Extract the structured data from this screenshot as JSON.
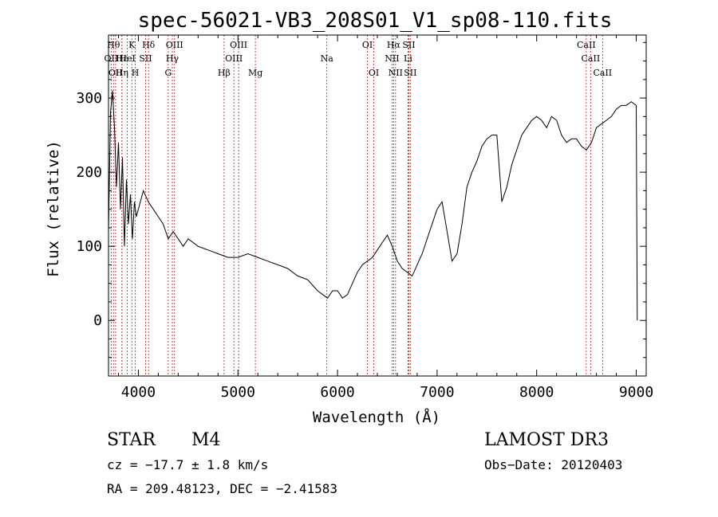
{
  "chart_data": {
    "type": "line",
    "title": "spec-56021-VB3_208S01_V1_sp08-110.fits",
    "xlabel": "Wavelength (Å)",
    "ylabel": "Flux (relative)",
    "xlim": [
      3700,
      9100
    ],
    "ylim": [
      -75,
      385
    ],
    "xticks": [
      4000,
      5000,
      6000,
      7000,
      8000,
      9000
    ],
    "yticks": [
      0,
      100,
      200,
      300
    ],
    "grid": false,
    "series": [
      {
        "name": "flux",
        "x": [
          3700,
          3720,
          3740,
          3760,
          3780,
          3800,
          3820,
          3840,
          3860,
          3880,
          3900,
          3920,
          3940,
          3960,
          3980,
          4000,
          4050,
          4100,
          4150,
          4200,
          4250,
          4300,
          4350,
          4400,
          4450,
          4500,
          4600,
          4700,
          4800,
          4900,
          5000,
          5100,
          5200,
          5300,
          5400,
          5500,
          5600,
          5700,
          5800,
          5850,
          5900,
          5950,
          6000,
          6050,
          6100,
          6150,
          6200,
          6250,
          6300,
          6350,
          6400,
          6450,
          6500,
          6550,
          6600,
          6650,
          6700,
          6750,
          6800,
          6850,
          6900,
          6950,
          7000,
          7050,
          7100,
          7150,
          7200,
          7250,
          7300,
          7350,
          7400,
          7450,
          7500,
          7550,
          7600,
          7650,
          7700,
          7750,
          7800,
          7850,
          7900,
          7950,
          8000,
          8050,
          8100,
          8150,
          8200,
          8250,
          8300,
          8350,
          8400,
          8450,
          8500,
          8550,
          8600,
          8650,
          8700,
          8750,
          8800,
          8850,
          8900,
          8950,
          9000,
          9010
        ],
        "y": [
          120,
          280,
          310,
          260,
          180,
          240,
          150,
          220,
          100,
          190,
          130,
          170,
          110,
          160,
          140,
          150,
          175,
          160,
          150,
          140,
          130,
          110,
          120,
          110,
          100,
          110,
          100,
          95,
          90,
          85,
          85,
          90,
          85,
          80,
          75,
          70,
          60,
          55,
          40,
          35,
          30,
          40,
          40,
          30,
          35,
          50,
          65,
          75,
          80,
          85,
          95,
          105,
          115,
          100,
          80,
          70,
          65,
          60,
          75,
          90,
          110,
          130,
          150,
          160,
          120,
          80,
          90,
          130,
          180,
          200,
          215,
          235,
          245,
          250,
          250,
          160,
          180,
          210,
          230,
          250,
          260,
          270,
          275,
          270,
          260,
          275,
          270,
          250,
          240,
          245,
          245,
          235,
          230,
          240,
          260,
          265,
          270,
          275,
          285,
          290,
          290,
          295,
          290,
          0
        ],
        "color": "#000000"
      }
    ],
    "lines": [
      {
        "w": 3727,
        "label": "OII",
        "row": 2
      },
      {
        "w": 3750,
        "label": "Hθ",
        "row": 1
      },
      {
        "w": 3771,
        "label": "OII",
        "row": 3
      },
      {
        "w": 3835,
        "label": "Hη",
        "row": 3
      },
      {
        "w": 3835,
        "label": "Hε",
        "row": 2
      },
      {
        "w": 3889,
        "label": "HeI",
        "row": 2
      },
      {
        "w": 3934,
        "label": "K",
        "row": 1
      },
      {
        "w": 3969,
        "label": "H",
        "row": 3
      },
      {
        "w": 4072,
        "label": "SII",
        "row": 2
      },
      {
        "w": 4102,
        "label": "Hδ",
        "row": 1
      },
      {
        "w": 4300,
        "label": "G",
        "row": 3
      },
      {
        "w": 4341,
        "label": "Hγ",
        "row": 2
      },
      {
        "w": 4363,
        "label": "OIII",
        "row": 1
      },
      {
        "w": 4861,
        "label": "Hβ",
        "row": 3
      },
      {
        "w": 4959,
        "label": "OIII",
        "row": 2
      },
      {
        "w": 5007,
        "label": "OIII",
        "row": 1
      },
      {
        "w": 5175,
        "label": "Mg",
        "row": 3
      },
      {
        "w": 5893,
        "label": "Na",
        "row": 2
      },
      {
        "w": 6300,
        "label": "OI",
        "row": 1
      },
      {
        "w": 6364,
        "label": "OI",
        "row": 3
      },
      {
        "w": 6548,
        "label": "NII",
        "row": 2
      },
      {
        "w": 6563,
        "label": "Hα",
        "row": 1
      },
      {
        "w": 6583,
        "label": "NII",
        "row": 3
      },
      {
        "w": 6708,
        "label": "Li",
        "row": 2
      },
      {
        "w": 6716,
        "label": "SII",
        "row": 1
      },
      {
        "w": 6731,
        "label": "SII",
        "row": 3
      },
      {
        "w": 8498,
        "label": "CaII",
        "row": 1
      },
      {
        "w": 8542,
        "label": "CaII",
        "row": 2
      },
      {
        "w": 8662,
        "label": "CaII",
        "row": 3
      }
    ]
  },
  "info": {
    "class": "STAR",
    "subclass": "M4",
    "survey": "LAMOST DR3",
    "cz": "cz = −17.7 ± 1.8 km/s",
    "obs_date": "Obs−Date: 20120403",
    "coords": "RA = 209.48123, DEC =  −2.41583"
  }
}
